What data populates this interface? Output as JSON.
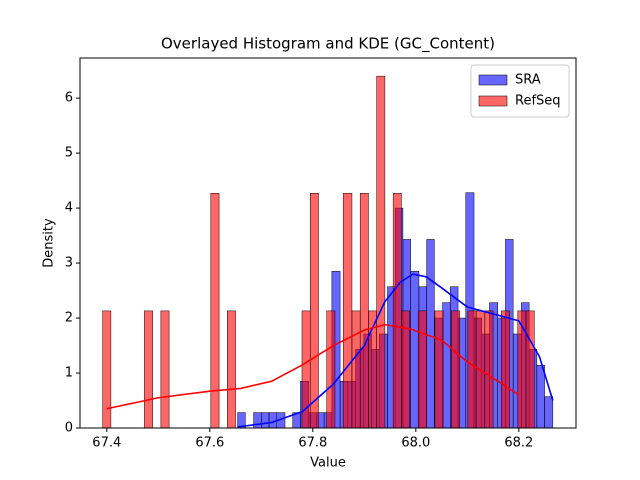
{
  "chart_data": {
    "type": "histogram_kde",
    "title": "Overlayed Histogram and KDE (GC_Content)",
    "x_label": "Value",
    "y_label": "Density",
    "xlim": [
      67.348,
      68.311
    ],
    "xticks": [
      67.4,
      67.6,
      67.8,
      {
        "value": 68.0,
        "label": "68.0"
      },
      68.2
    ],
    "ylim": [
      0,
      6.73
    ],
    "yticks": [
      0,
      1,
      2,
      3,
      4,
      5,
      6
    ],
    "legend_position": "upper-right",
    "series": [
      {
        "name": "SRA",
        "color": "#0000ff",
        "bins": [
          67.654,
          67.669,
          67.685,
          67.7,
          67.715,
          67.73,
          67.746,
          67.761,
          67.776,
          67.792,
          67.807,
          67.822,
          67.837,
          67.853,
          67.868,
          67.883,
          67.899,
          67.914,
          67.929,
          67.945,
          67.96,
          67.975,
          67.99,
          68.006,
          68.021,
          68.036,
          68.052,
          68.067,
          68.082,
          68.097,
          68.113,
          68.128,
          68.143,
          68.159,
          68.174,
          68.189,
          68.205,
          68.22,
          68.235,
          68.25,
          68.266
        ],
        "values": [
          0.28,
          0,
          0.28,
          0.28,
          0.28,
          0.28,
          0,
          0.28,
          0.85,
          0.28,
          0.28,
          0.28,
          2.85,
          0.85,
          0.85,
          1.43,
          1.71,
          1.43,
          1.71,
          2.57,
          4.0,
          3.43,
          2.85,
          2.57,
          3.43,
          2.0,
          2.28,
          2.57,
          2.0,
          4.28,
          2.0,
          1.71,
          2.28,
          2.0,
          3.43,
          1.71,
          2.28,
          1.43,
          1.14,
          0.57
        ],
        "kde": {
          "x": [
            67.654,
            67.72,
            67.78,
            67.84,
            67.9,
            67.94,
            67.97,
            67.994,
            68.02,
            68.05,
            68.1,
            68.16,
            68.2,
            68.24,
            68.266
          ],
          "values": [
            0.02,
            0.1,
            0.3,
            0.8,
            1.5,
            2.3,
            2.65,
            2.8,
            2.75,
            2.55,
            2.2,
            2.05,
            1.95,
            1.3,
            0.5
          ]
        }
      },
      {
        "name": "RefSeq",
        "color": "#ff0000",
        "bins": [
          67.392,
          67.408,
          67.424,
          67.44,
          67.456,
          67.473,
          67.489,
          67.505,
          67.521,
          67.537,
          67.553,
          67.569,
          67.585,
          67.602,
          67.618,
          67.634,
          67.65,
          67.666,
          67.682,
          67.698,
          67.714,
          67.731,
          67.747,
          67.763,
          67.779,
          67.795,
          67.811,
          67.827,
          67.843,
          67.859,
          67.876,
          67.892,
          67.908,
          67.924,
          67.94,
          67.956,
          67.972,
          67.988,
          68.005,
          68.021,
          68.037,
          68.053,
          68.069,
          68.085,
          68.101,
          68.117,
          68.134,
          68.15,
          68.166,
          68.182,
          68.198,
          68.214,
          68.23
        ],
        "values": [
          2.13,
          0,
          0,
          0,
          0,
          2.13,
          0,
          2.13,
          0,
          0,
          0,
          0,
          0,
          4.27,
          0,
          2.13,
          0,
          0,
          0,
          0,
          0,
          0,
          0,
          0,
          2.13,
          4.27,
          0,
          2.13,
          0,
          4.27,
          2.13,
          4.27,
          2.13,
          6.4,
          0,
          4.27,
          2.13,
          0,
          2.13,
          0,
          2.13,
          0,
          2.13,
          0,
          2.13,
          2.13,
          2.13,
          0,
          2.13,
          0,
          2.13,
          2.13
        ],
        "kde": {
          "x": [
            67.4,
            67.5,
            67.6,
            67.66,
            67.72,
            67.78,
            67.84,
            67.9,
            67.94,
            67.99,
            68.05,
            68.1,
            68.16,
            68.2
          ],
          "values": [
            0.35,
            0.55,
            0.67,
            0.72,
            0.85,
            1.15,
            1.5,
            1.78,
            1.88,
            1.8,
            1.6,
            1.2,
            0.85,
            0.6
          ]
        }
      }
    ]
  }
}
